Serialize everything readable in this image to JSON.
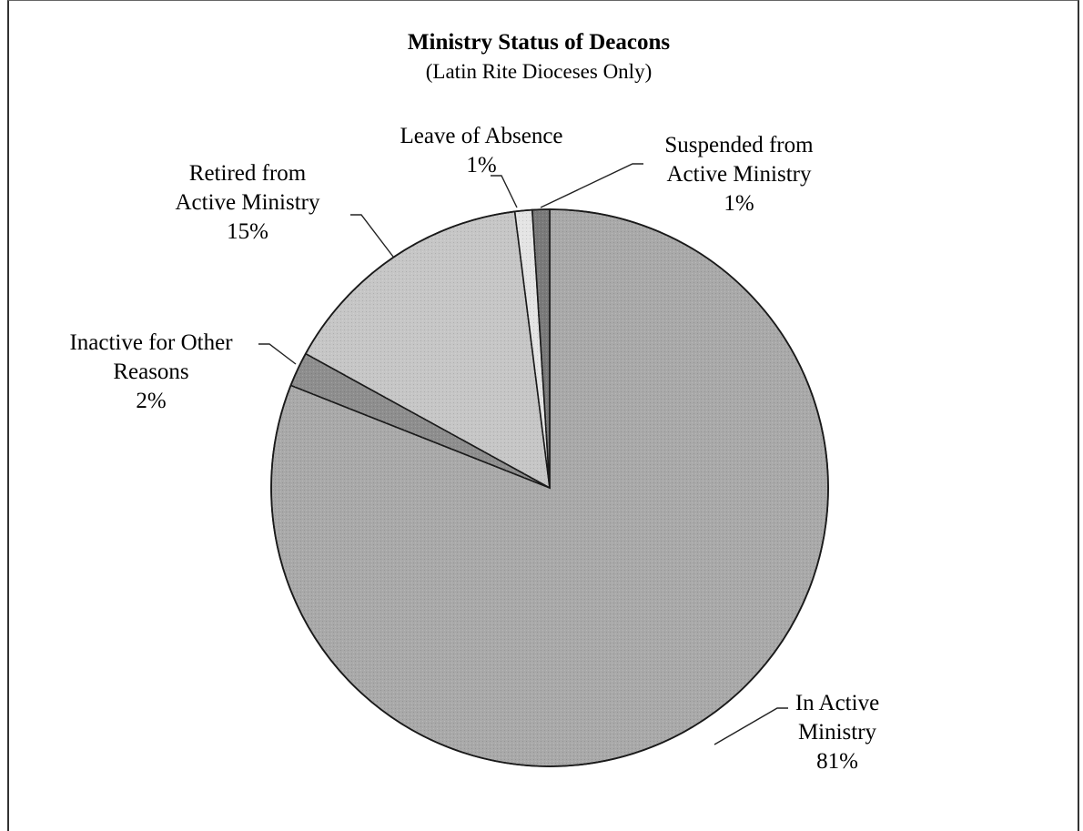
{
  "chart_data": {
    "type": "pie",
    "title": "Ministry Status of Deacons",
    "subtitle": "(Latin Rite Dioceses Only)",
    "slices": [
      {
        "label_lines": [
          "In Active",
          "Ministry"
        ],
        "value": 81,
        "percent_label": "81%",
        "color": "#a9a9a9"
      },
      {
        "label_lines": [
          "Inactive for Other",
          "Reasons"
        ],
        "value": 2,
        "percent_label": "2%",
        "color": "#8e8e8e"
      },
      {
        "label_lines": [
          "Retired from",
          "Active Ministry"
        ],
        "value": 15,
        "percent_label": "15%",
        "color": "#c6c6c6"
      },
      {
        "label_lines": [
          "Leave of Absence"
        ],
        "value": 1,
        "percent_label": "1%",
        "color": "#e4e4e4"
      },
      {
        "label_lines": [
          "Suspended from",
          "Active Ministry"
        ],
        "value": 1,
        "percent_label": "1%",
        "color": "#7a7a7a"
      }
    ],
    "legend": "none",
    "grid": false
  }
}
